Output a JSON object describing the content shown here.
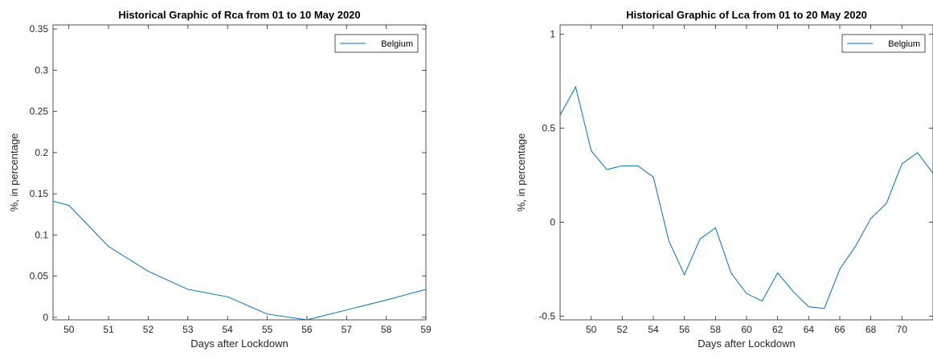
{
  "chart_data": [
    {
      "type": "line",
      "title": "Historical Graphic of Rca from 01 to 10 May 2020",
      "xlabel": "Days after Lockdown",
      "ylabel": "%, in percentage",
      "xlim": [
        49.6,
        59
      ],
      "ylim": [
        -0.003,
        0.355
      ],
      "xticks": [
        50,
        51,
        52,
        53,
        54,
        55,
        56,
        57,
        58,
        59
      ],
      "xtick_labels": [
        "50",
        "51",
        "52",
        "53",
        "54",
        "55",
        "56",
        "57",
        "58",
        "59"
      ],
      "yticks": [
        0,
        0.05,
        0.1,
        0.15,
        0.2,
        0.25,
        0.3,
        0.35
      ],
      "ytick_labels": [
        "0",
        "0.05",
        "0.1",
        "0.15",
        "0.2",
        "0.25",
        "0.3",
        "0.35"
      ],
      "legend_position": "top-right",
      "grid": false,
      "color": "#0072BD",
      "series": [
        {
          "name": "Belgium",
          "x": [
            49.6,
            50,
            51,
            52,
            53,
            54,
            55,
            56,
            57,
            58,
            59
          ],
          "y": [
            0.141,
            0.136,
            0.086,
            0.056,
            0.034,
            0.025,
            0.004,
            -0.003,
            0.009,
            0.021,
            0.034
          ]
        }
      ]
    },
    {
      "type": "line",
      "title": "Historical Graphic of Lca from 01 to 20 May 2020",
      "xlabel": "Days after Lockdown",
      "ylabel": "%, in percentage",
      "xlim": [
        48,
        72
      ],
      "ylim": [
        -0.52,
        1.05
      ],
      "xticks": [
        50,
        52,
        54,
        56,
        58,
        60,
        62,
        64,
        66,
        68,
        70
      ],
      "xtick_labels": [
        "50",
        "52",
        "54",
        "56",
        "58",
        "60",
        "62",
        "64",
        "66",
        "68",
        "70"
      ],
      "yticks": [
        -0.5,
        0,
        0.5,
        1
      ],
      "ytick_labels": [
        "-0.5",
        "0",
        "0.5",
        "1"
      ],
      "legend_position": "top-right",
      "grid": false,
      "color": "#0072BD",
      "series": [
        {
          "name": "Belgium",
          "x": [
            48,
            49,
            50,
            51,
            52,
            53,
            54,
            55,
            56,
            57,
            58,
            59,
            60,
            61,
            62,
            63,
            64,
            65,
            66,
            67,
            68,
            69,
            70,
            71,
            72
          ],
          "y": [
            0.57,
            0.72,
            0.38,
            0.28,
            0.3,
            0.3,
            0.24,
            -0.1,
            -0.28,
            -0.09,
            -0.03,
            -0.27,
            -0.38,
            -0.42,
            -0.27,
            -0.37,
            -0.45,
            -0.46,
            -0.25,
            -0.13,
            0.02,
            0.1,
            0.31,
            0.37,
            0.26
          ]
        }
      ]
    }
  ]
}
